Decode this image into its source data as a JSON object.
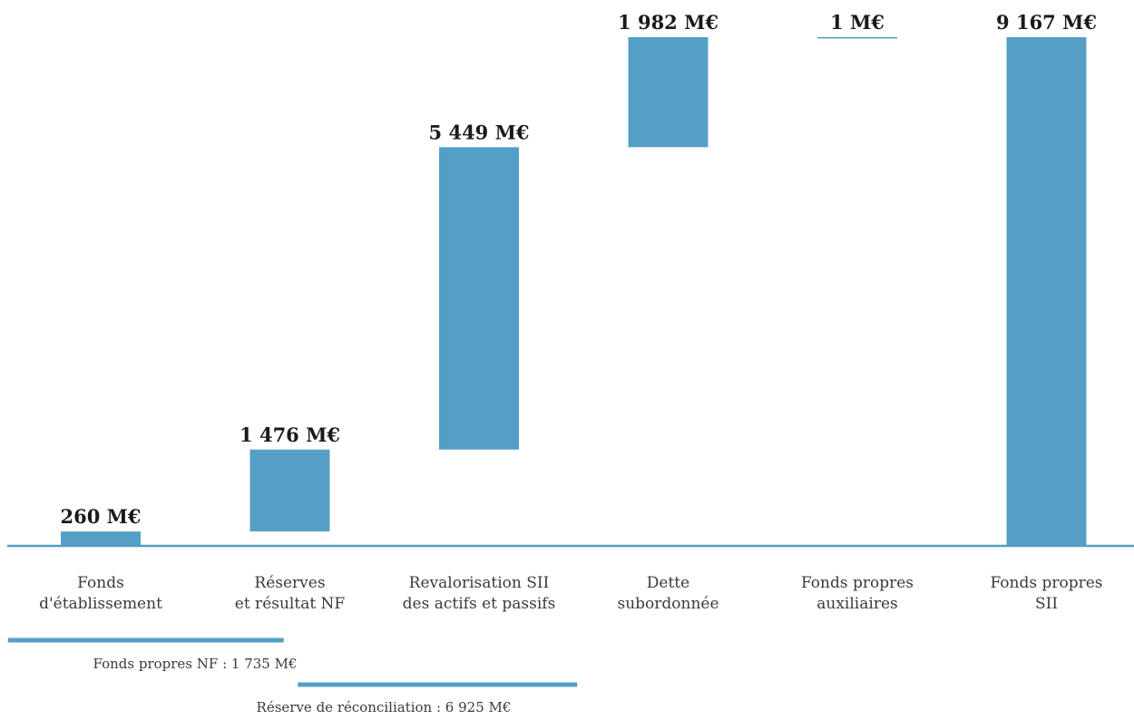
{
  "chart_data": {
    "type": "bar",
    "variant": "waterfall",
    "unit": "M€",
    "bar_color": "#559fc6",
    "baseline_color": "#559fc6",
    "categories": [
      [
        "Fonds",
        "d'établissement"
      ],
      [
        "Réserves",
        "et résultat NF"
      ],
      [
        "Revalorisation SII",
        "des actifs et passifs"
      ],
      [
        "Dette",
        "subordonnée"
      ],
      [
        "Fonds propres",
        "auxiliaires"
      ],
      [
        "Fonds propres",
        "SII"
      ]
    ],
    "steps": [
      {
        "start": 0,
        "end": 260,
        "label": "260 M€"
      },
      {
        "start": 260,
        "end": 1736,
        "label": "1 476 M€"
      },
      {
        "start": 1736,
        "end": 7185,
        "label": "5 449 M€"
      },
      {
        "start": 7185,
        "end": 9167,
        "label": "1 982 M€"
      },
      {
        "start": 9167,
        "end": 9168,
        "label": "1 M€"
      },
      {
        "start": 0,
        "end": 9167,
        "label": "9 167 M€"
      }
    ],
    "ylim": [
      0,
      9167
    ],
    "grid": false,
    "legend": "none",
    "groups": [
      {
        "label": "Fonds propres NF : 1 735 M€",
        "from": 0,
        "to": 1
      },
      {
        "label": "Réserve de réconciliation : 6 925 M€",
        "from": 1,
        "to": 2
      }
    ]
  }
}
